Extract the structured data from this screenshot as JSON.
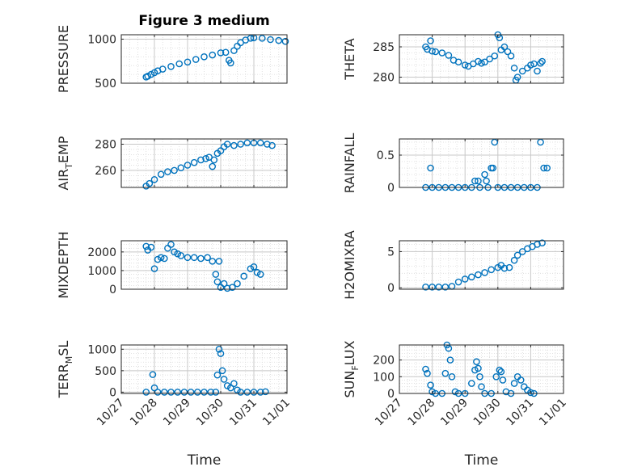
{
  "chart_data": {
    "type": "scatter",
    "title": "Figure 3 medium",
    "xlabel": "Time",
    "x_ticks": [
      "10/27",
      "10/28",
      "10/29",
      "10/30",
      "10/31",
      "11/01"
    ],
    "marker_color": "#0072bd",
    "grid": true,
    "panels": [
      {
        "id": "pressure",
        "ylabel": "PRESSURE",
        "ylim": [
          500,
          1050
        ],
        "yticks": [
          500,
          1000
        ],
        "points": [
          [
            27.75,
            570
          ],
          [
            27.8,
            580
          ],
          [
            27.9,
            600
          ],
          [
            28.0,
            620
          ],
          [
            28.1,
            640
          ],
          [
            28.25,
            660
          ],
          [
            28.5,
            690
          ],
          [
            28.75,
            720
          ],
          [
            29.0,
            740
          ],
          [
            29.25,
            770
          ],
          [
            29.5,
            800
          ],
          [
            29.75,
            820
          ],
          [
            30.0,
            845
          ],
          [
            30.15,
            850
          ],
          [
            30.25,
            760
          ],
          [
            30.3,
            730
          ],
          [
            30.4,
            870
          ],
          [
            30.5,
            920
          ],
          [
            30.6,
            960
          ],
          [
            30.75,
            990
          ],
          [
            30.9,
            1010
          ],
          [
            31.0,
            1015
          ],
          [
            31.25,
            1010
          ],
          [
            31.5,
            995
          ],
          [
            31.75,
            985
          ],
          [
            31.95,
            975
          ]
        ]
      },
      {
        "id": "theta",
        "ylabel": "THETA",
        "ylim": [
          279,
          287
        ],
        "yticks": [
          280,
          285
        ],
        "points": [
          [
            27.8,
            285
          ],
          [
            27.85,
            284.6
          ],
          [
            27.95,
            286
          ],
          [
            28.0,
            284.3
          ],
          [
            28.1,
            284.2
          ],
          [
            28.3,
            284
          ],
          [
            28.5,
            283.6
          ],
          [
            28.65,
            282.8
          ],
          [
            28.8,
            282.5
          ],
          [
            29.0,
            282
          ],
          [
            29.1,
            281.8
          ],
          [
            29.25,
            282.2
          ],
          [
            29.4,
            282.6
          ],
          [
            29.5,
            282.3
          ],
          [
            29.6,
            282.5
          ],
          [
            29.75,
            283
          ],
          [
            29.9,
            283.5
          ],
          [
            30.0,
            287
          ],
          [
            30.05,
            286.5
          ],
          [
            30.1,
            284.5
          ],
          [
            30.2,
            285
          ],
          [
            30.3,
            284.2
          ],
          [
            30.4,
            283.5
          ],
          [
            30.5,
            281.5
          ],
          [
            30.55,
            279.5
          ],
          [
            30.6,
            280
          ],
          [
            30.75,
            281
          ],
          [
            30.9,
            281.5
          ],
          [
            31.0,
            282
          ],
          [
            31.1,
            282.2
          ],
          [
            31.2,
            281
          ],
          [
            31.3,
            282.3
          ],
          [
            31.35,
            282.6
          ]
        ]
      },
      {
        "id": "airtemp",
        "ylabel": "AIR_TEMP",
        "ylim": [
          247,
          284
        ],
        "yticks": [
          260,
          280
        ],
        "points": [
          [
            27.75,
            248
          ],
          [
            27.85,
            250
          ],
          [
            28.0,
            253
          ],
          [
            28.2,
            257
          ],
          [
            28.4,
            259
          ],
          [
            28.6,
            260
          ],
          [
            28.8,
            262
          ],
          [
            29.0,
            264
          ],
          [
            29.2,
            266
          ],
          [
            29.4,
            268
          ],
          [
            29.55,
            269
          ],
          [
            29.65,
            270
          ],
          [
            29.75,
            263
          ],
          [
            29.8,
            268
          ],
          [
            29.9,
            273
          ],
          [
            30.0,
            275
          ],
          [
            30.1,
            278
          ],
          [
            30.2,
            280
          ],
          [
            30.4,
            279
          ],
          [
            30.6,
            280
          ],
          [
            30.8,
            281
          ],
          [
            31.0,
            281
          ],
          [
            31.2,
            281
          ],
          [
            31.4,
            280
          ],
          [
            31.55,
            279
          ]
        ]
      },
      {
        "id": "rainfall",
        "ylabel": "RAINFALL",
        "ylim": [
          0,
          0.75
        ],
        "yticks": [
          0,
          0.5
        ],
        "points": [
          [
            27.8,
            0
          ],
          [
            27.95,
            0.3
          ],
          [
            28.0,
            0
          ],
          [
            28.2,
            0
          ],
          [
            28.4,
            0
          ],
          [
            28.6,
            0
          ],
          [
            28.8,
            0
          ],
          [
            29.0,
            0
          ],
          [
            29.2,
            0
          ],
          [
            29.3,
            0.1
          ],
          [
            29.4,
            0.1
          ],
          [
            29.45,
            0
          ],
          [
            29.6,
            0.2
          ],
          [
            29.65,
            0.1
          ],
          [
            29.7,
            0
          ],
          [
            29.8,
            0.3
          ],
          [
            29.85,
            0.3
          ],
          [
            29.9,
            0.7
          ],
          [
            30.0,
            0
          ],
          [
            30.2,
            0
          ],
          [
            30.4,
            0
          ],
          [
            30.6,
            0
          ],
          [
            30.8,
            0
          ],
          [
            31.0,
            0
          ],
          [
            31.2,
            0
          ],
          [
            31.3,
            0.7
          ],
          [
            31.4,
            0.3
          ],
          [
            31.5,
            0.3
          ]
        ]
      },
      {
        "id": "mixdepth",
        "ylabel": "MIXDEPTH",
        "ylim": [
          0,
          2600
        ],
        "yticks": [
          0,
          1000,
          2000
        ],
        "points": [
          [
            27.75,
            2300
          ],
          [
            27.8,
            2100
          ],
          [
            27.9,
            2250
          ],
          [
            28.0,
            1100
          ],
          [
            28.1,
            1600
          ],
          [
            28.2,
            1700
          ],
          [
            28.3,
            1650
          ],
          [
            28.4,
            2200
          ],
          [
            28.5,
            2400
          ],
          [
            28.6,
            2000
          ],
          [
            28.7,
            1900
          ],
          [
            28.8,
            1800
          ],
          [
            29.0,
            1700
          ],
          [
            29.2,
            1700
          ],
          [
            29.4,
            1650
          ],
          [
            29.6,
            1700
          ],
          [
            29.75,
            1500
          ],
          [
            29.85,
            800
          ],
          [
            29.9,
            400
          ],
          [
            29.95,
            1500
          ],
          [
            30.0,
            100
          ],
          [
            30.1,
            300
          ],
          [
            30.2,
            50
          ],
          [
            30.35,
            100
          ],
          [
            30.5,
            300
          ],
          [
            30.7,
            700
          ],
          [
            30.9,
            1100
          ],
          [
            31.0,
            1200
          ],
          [
            31.1,
            900
          ],
          [
            31.2,
            800
          ]
        ]
      },
      {
        "id": "h2omixra",
        "ylabel": "H2OMIXRA",
        "ylim": [
          -0.2,
          6.5
        ],
        "yticks": [
          0,
          5
        ],
        "points": [
          [
            27.8,
            0.1
          ],
          [
            28.0,
            0.1
          ],
          [
            28.2,
            0.1
          ],
          [
            28.4,
            0.1
          ],
          [
            28.6,
            0.2
          ],
          [
            28.8,
            0.8
          ],
          [
            29.0,
            1.2
          ],
          [
            29.2,
            1.5
          ],
          [
            29.4,
            1.8
          ],
          [
            29.6,
            2.1
          ],
          [
            29.8,
            2.5
          ],
          [
            30.0,
            2.8
          ],
          [
            30.1,
            3.1
          ],
          [
            30.2,
            2.7
          ],
          [
            30.35,
            2.8
          ],
          [
            30.5,
            3.8
          ],
          [
            30.6,
            4.5
          ],
          [
            30.75,
            5
          ],
          [
            30.9,
            5.4
          ],
          [
            31.05,
            5.7
          ],
          [
            31.2,
            6.0
          ],
          [
            31.35,
            6.2
          ]
        ]
      },
      {
        "id": "terrmsl",
        "ylabel": "TERR_MSL",
        "ylim": [
          -30,
          1100
        ],
        "yticks": [
          0,
          500,
          1000
        ],
        "points": [
          [
            27.75,
            0
          ],
          [
            27.95,
            410
          ],
          [
            28.0,
            100
          ],
          [
            28.1,
            0
          ],
          [
            28.3,
            0
          ],
          [
            28.5,
            0
          ],
          [
            28.7,
            0
          ],
          [
            28.9,
            0
          ],
          [
            29.1,
            0
          ],
          [
            29.3,
            0
          ],
          [
            29.5,
            0
          ],
          [
            29.7,
            0
          ],
          [
            29.85,
            0
          ],
          [
            29.9,
            400
          ],
          [
            29.95,
            1000
          ],
          [
            30.0,
            900
          ],
          [
            30.05,
            500
          ],
          [
            30.1,
            300
          ],
          [
            30.2,
            150
          ],
          [
            30.3,
            100
          ],
          [
            30.4,
            200
          ],
          [
            30.5,
            50
          ],
          [
            30.6,
            0
          ],
          [
            30.8,
            0
          ],
          [
            31.0,
            0
          ],
          [
            31.2,
            0
          ],
          [
            31.35,
            10
          ]
        ]
      },
      {
        "id": "sunflux",
        "ylabel": "SUN_FLUX",
        "ylim": [
          0,
          290
        ],
        "yticks": [
          0,
          100,
          200
        ],
        "points": [
          [
            27.8,
            145
          ],
          [
            27.85,
            120
          ],
          [
            27.95,
            50
          ],
          [
            28.0,
            10
          ],
          [
            28.1,
            0
          ],
          [
            28.3,
            0
          ],
          [
            28.4,
            120
          ],
          [
            28.45,
            290
          ],
          [
            28.5,
            270
          ],
          [
            28.55,
            200
          ],
          [
            28.6,
            100
          ],
          [
            28.7,
            10
          ],
          [
            28.8,
            0
          ],
          [
            29.0,
            0
          ],
          [
            29.2,
            60
          ],
          [
            29.3,
            140
          ],
          [
            29.35,
            190
          ],
          [
            29.4,
            150
          ],
          [
            29.45,
            100
          ],
          [
            29.5,
            40
          ],
          [
            29.6,
            0
          ],
          [
            29.8,
            0
          ],
          [
            29.95,
            100
          ],
          [
            30.05,
            140
          ],
          [
            30.1,
            130
          ],
          [
            30.15,
            80
          ],
          [
            30.25,
            10
          ],
          [
            30.4,
            0
          ],
          [
            30.5,
            60
          ],
          [
            30.6,
            100
          ],
          [
            30.7,
            80
          ],
          [
            30.8,
            40
          ],
          [
            30.9,
            20
          ],
          [
            31.0,
            5
          ],
          [
            31.1,
            0
          ]
        ]
      }
    ]
  }
}
